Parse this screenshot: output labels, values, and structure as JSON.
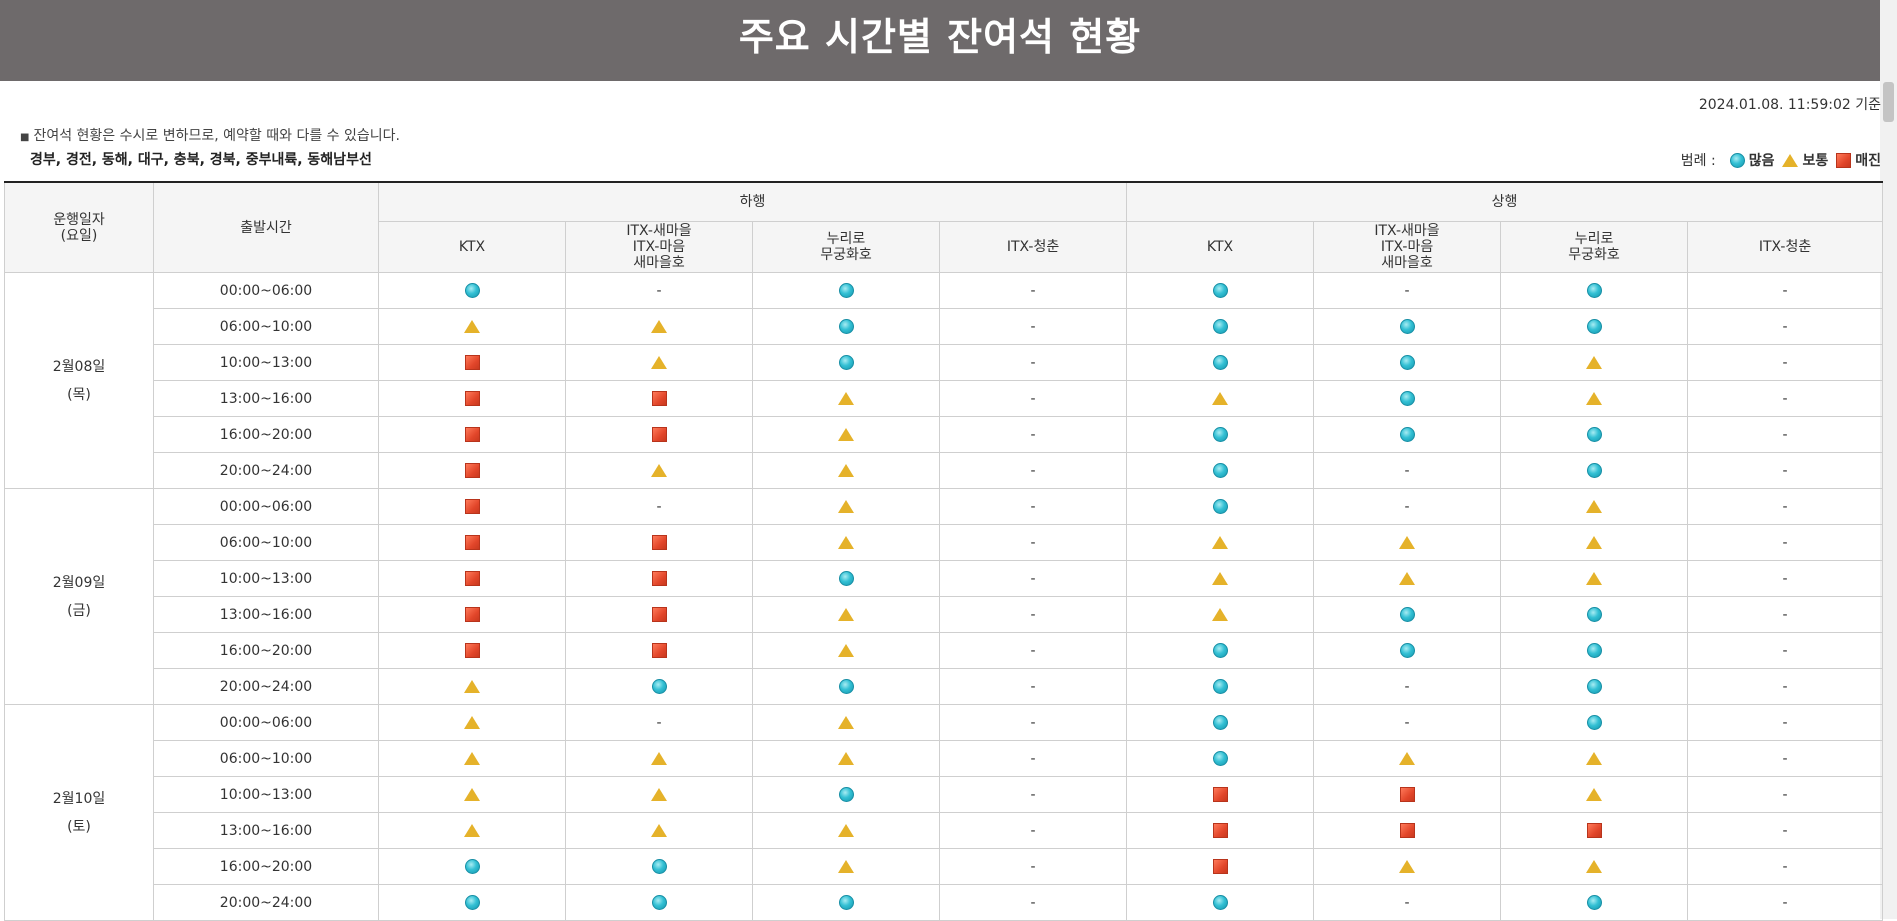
{
  "page": {
    "title": "주요 시간별 잔여석 현황",
    "timestamp": "2024.01.08. 11:59:02 기준",
    "notice": "잔여석 현황은 수시로 변하므로, 예약할 때와 다를 수 있습니다.",
    "routes": "경부, 경전, 동해, 대구, 충북, 경북, 중부내륙, 동해남부선"
  },
  "legend": {
    "label": "범례 :",
    "items": [
      {
        "symbol": "circle",
        "label": "많음"
      },
      {
        "symbol": "triangle",
        "label": "보통"
      },
      {
        "symbol": "square",
        "label": "매진"
      }
    ]
  },
  "colors": {
    "header_bg": "#6e6a6b",
    "many": "#33c0d4",
    "normal": "#e5b22a",
    "soldout": "#e2462a"
  },
  "table": {
    "col_date": "운행일자\n(요일)",
    "col_time": "출발시간",
    "group_down": "하행",
    "group_up": "상행",
    "trains": [
      "KTX",
      "ITX-새마을\nITX-마음\n새마을호",
      "누리로\n무궁화호",
      "ITX-청춘"
    ],
    "dash": "-",
    "days": [
      {
        "date": "2월08일",
        "weekday": "(목)",
        "rows": [
          {
            "time": "00:00~06:00",
            "cells": [
              "circle",
              "dash",
              "circle",
              "dash",
              "circle",
              "dash",
              "circle",
              "dash"
            ]
          },
          {
            "time": "06:00~10:00",
            "cells": [
              "triangle",
              "triangle",
              "circle",
              "dash",
              "circle",
              "circle",
              "circle",
              "dash"
            ]
          },
          {
            "time": "10:00~13:00",
            "cells": [
              "square",
              "triangle",
              "circle",
              "dash",
              "circle",
              "circle",
              "triangle",
              "dash"
            ]
          },
          {
            "time": "13:00~16:00",
            "cells": [
              "square",
              "square",
              "triangle",
              "dash",
              "triangle",
              "circle",
              "triangle",
              "dash"
            ]
          },
          {
            "time": "16:00~20:00",
            "cells": [
              "square",
              "square",
              "triangle",
              "dash",
              "circle",
              "circle",
              "circle",
              "dash"
            ]
          },
          {
            "time": "20:00~24:00",
            "cells": [
              "square",
              "triangle",
              "triangle",
              "dash",
              "circle",
              "dash",
              "circle",
              "dash"
            ]
          }
        ]
      },
      {
        "date": "2월09일",
        "weekday": "(금)",
        "rows": [
          {
            "time": "00:00~06:00",
            "cells": [
              "square",
              "dash",
              "triangle",
              "dash",
              "circle",
              "dash",
              "triangle",
              "dash"
            ]
          },
          {
            "time": "06:00~10:00",
            "cells": [
              "square",
              "square",
              "triangle",
              "dash",
              "triangle",
              "triangle",
              "triangle",
              "dash"
            ]
          },
          {
            "time": "10:00~13:00",
            "cells": [
              "square",
              "square",
              "circle",
              "dash",
              "triangle",
              "triangle",
              "triangle",
              "dash"
            ]
          },
          {
            "time": "13:00~16:00",
            "cells": [
              "square",
              "square",
              "triangle",
              "dash",
              "triangle",
              "circle",
              "circle",
              "dash"
            ]
          },
          {
            "time": "16:00~20:00",
            "cells": [
              "square",
              "square",
              "triangle",
              "dash",
              "circle",
              "circle",
              "circle",
              "dash"
            ]
          },
          {
            "time": "20:00~24:00",
            "cells": [
              "triangle",
              "circle",
              "circle",
              "dash",
              "circle",
              "dash",
              "circle",
              "dash"
            ]
          }
        ]
      },
      {
        "date": "2월10일",
        "weekday": "(토)",
        "rows": [
          {
            "time": "00:00~06:00",
            "cells": [
              "triangle",
              "dash",
              "triangle",
              "dash",
              "circle",
              "dash",
              "circle",
              "dash"
            ]
          },
          {
            "time": "06:00~10:00",
            "cells": [
              "triangle",
              "triangle",
              "triangle",
              "dash",
              "circle",
              "triangle",
              "triangle",
              "dash"
            ]
          },
          {
            "time": "10:00~13:00",
            "cells": [
              "triangle",
              "triangle",
              "circle",
              "dash",
              "square",
              "square",
              "triangle",
              "dash"
            ]
          },
          {
            "time": "13:00~16:00",
            "cells": [
              "triangle",
              "triangle",
              "triangle",
              "dash",
              "square",
              "square",
              "square",
              "dash"
            ]
          },
          {
            "time": "16:00~20:00",
            "cells": [
              "circle",
              "circle",
              "triangle",
              "dash",
              "square",
              "triangle",
              "triangle",
              "dash"
            ]
          },
          {
            "time": "20:00~24:00",
            "cells": [
              "circle",
              "circle",
              "circle",
              "dash",
              "circle",
              "dash",
              "circle",
              "dash"
            ]
          }
        ]
      }
    ]
  }
}
